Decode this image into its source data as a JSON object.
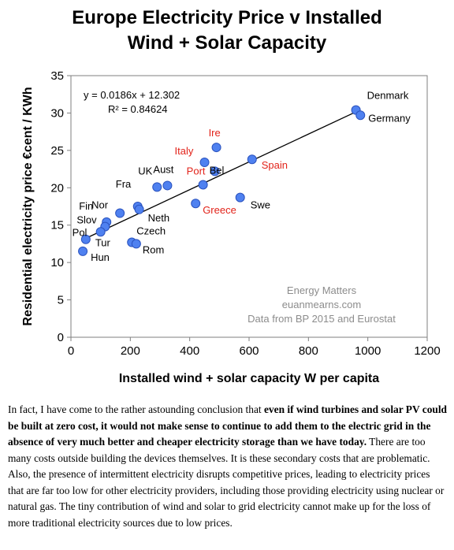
{
  "chart_data": {
    "type": "scatter",
    "title_lines": [
      "Europe Electricity Price v Installed",
      "Wind + Solar Capacity"
    ],
    "xlabel": "Installed wind + solar capacity W per capita",
    "ylabel": "Residential electricity price €cent / KWh",
    "xlim": [
      0,
      1200
    ],
    "ylim": [
      0,
      35
    ],
    "xticks": [
      0,
      200,
      400,
      600,
      800,
      1000,
      1200
    ],
    "yticks": [
      0,
      5,
      10,
      15,
      20,
      25,
      30,
      35
    ],
    "grid": false,
    "marker_color": "#4f81f0",
    "highlight_color": "#e2231a",
    "points": [
      {
        "label": "Denmark",
        "x": 960,
        "y": 30.4,
        "highlight": false
      },
      {
        "label": "Germany",
        "x": 975,
        "y": 29.7,
        "highlight": false
      },
      {
        "label": "Ire",
        "x": 490,
        "y": 25.4,
        "highlight": true
      },
      {
        "label": "Italy",
        "x": 450,
        "y": 23.4,
        "highlight": true
      },
      {
        "label": "Spain",
        "x": 610,
        "y": 23.8,
        "highlight": true
      },
      {
        "label": "Port",
        "x": 485,
        "y": 22.2,
        "highlight": true
      },
      {
        "label": "Aust",
        "x": 325,
        "y": 20.3,
        "highlight": false
      },
      {
        "label": "UK",
        "x": 290,
        "y": 20.1,
        "highlight": false
      },
      {
        "label": "Bel",
        "x": 445,
        "y": 20.4,
        "highlight": false
      },
      {
        "label": "Greece",
        "x": 420,
        "y": 17.9,
        "highlight": true
      },
      {
        "label": "Swe",
        "x": 570,
        "y": 18.7,
        "highlight": false
      },
      {
        "label": "Fra",
        "x": 225,
        "y": 17.5,
        "highlight": false
      },
      {
        "label": "Neth",
        "x": 230,
        "y": 17.1,
        "highlight": false
      },
      {
        "label": "Nor",
        "x": 165,
        "y": 16.6,
        "highlight": false
      },
      {
        "label": "Fin",
        "x": 120,
        "y": 15.4,
        "highlight": false
      },
      {
        "label": "Slov",
        "x": 115,
        "y": 14.8,
        "highlight": false
      },
      {
        "label": "Pol",
        "x": 100,
        "y": 14.1,
        "highlight": false
      },
      {
        "label": "Tur",
        "x": 50,
        "y": 13.1,
        "highlight": false
      },
      {
        "label": "Czech",
        "x": 205,
        "y": 12.7,
        "highlight": false
      },
      {
        "label": "Rom",
        "x": 220,
        "y": 12.5,
        "highlight": false
      },
      {
        "label": "Hun",
        "x": 40,
        "y": 11.5,
        "highlight": false
      }
    ],
    "trendline": {
      "slope": 0.0186,
      "intercept": 12.302,
      "x_range": [
        40,
        975
      ]
    },
    "annotations": {
      "equation": "y = 0.0186x + 12.302",
      "r_squared": "R² = 0.84624"
    },
    "watermark": [
      "Energy Matters",
      "euanmearns.com",
      "Data from BP 2015 and Eurostat"
    ]
  },
  "caption": {
    "intro": "In fact, I have come to the rather astounding conclusion that ",
    "bold": "even if wind turbines and solar PV could be built at zero cost, it would not make sense to continue to add them to the electric grid in the absence of very much better and cheaper electricity storage than we have today.",
    "rest": " There are too many costs outside building the devices themselves. It is these secondary costs that are problematic. Also, the presence of intermittent electricity disrupts competitive prices, leading to electricity prices that are far too low for other electricity providers, including those providing electricity using nuclear or natural gas. The tiny contribution of wind and solar to grid electricity cannot make up for the loss of more traditional electricity sources due to low prices."
  }
}
